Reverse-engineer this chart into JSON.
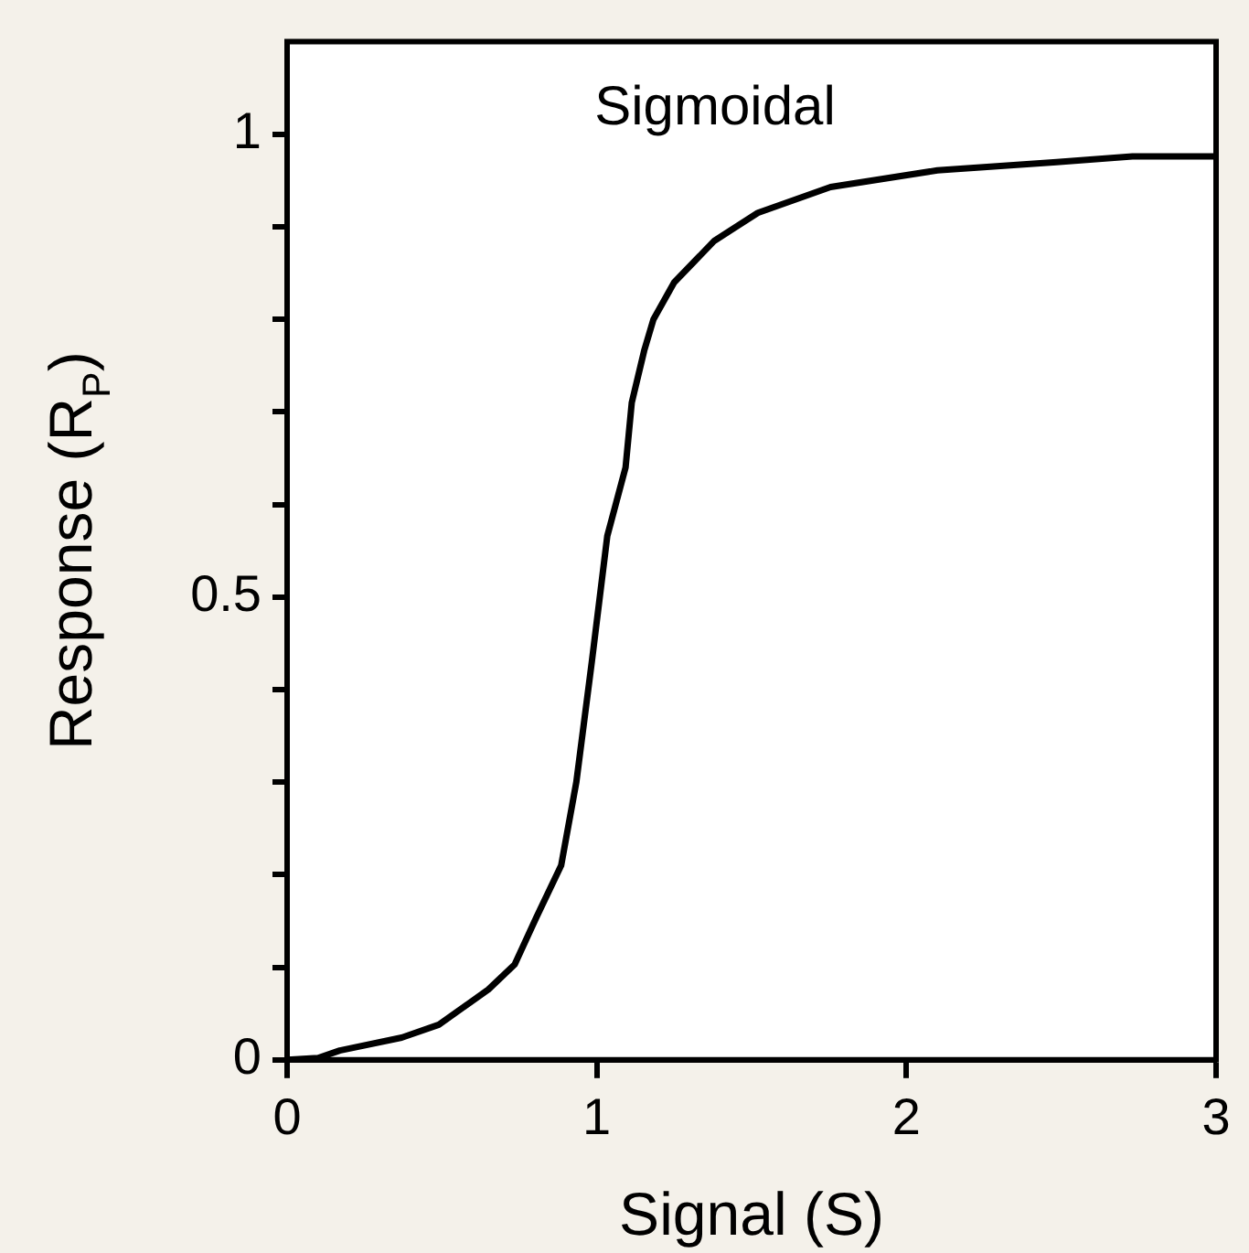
{
  "chart_data": {
    "type": "line",
    "title": "Sigmoidal",
    "xlabel": "Signal (S)",
    "ylabel": "Response (R$_{P}$)",
    "series": [
      {
        "color": "#000000",
        "x": [
          0,
          0.1,
          0.17,
          0.37,
          0.49,
          0.65,
          0.735,
          0.805,
          0.885,
          0.934,
          0.984,
          1.034,
          1.093,
          1.113,
          1.153,
          1.183,
          1.25,
          1.38,
          1.52,
          1.755,
          2.1,
          2.485,
          2.73,
          3
        ],
        "values": [
          0,
          0.002,
          0.01,
          0.024,
          0.038,
          0.076,
          0.103,
          0.154,
          0.21,
          0.3,
          0.43,
          0.566,
          0.64,
          0.71,
          0.766,
          0.8,
          0.84,
          0.885,
          0.915,
          0.943,
          0.961,
          0.97,
          0.976,
          0.976
        ]
      }
    ],
    "xlim": [
      0,
      3
    ],
    "xticks": [
      0,
      1,
      2,
      3
    ],
    "ylim": [
      0,
      1.1
    ],
    "yticks": [
      0,
      {
        "value": 0.1,
        "label": null
      },
      {
        "value": 0.2,
        "label": null
      },
      {
        "value": 0.3,
        "label": null
      },
      {
        "value": 0.4,
        "label": null
      },
      0.5,
      {
        "value": 0.6,
        "label": null
      },
      {
        "value": 0.7,
        "label": null
      },
      {
        "value": 0.8,
        "label": null
      },
      {
        "value": 0.9,
        "label": null
      },
      1
    ],
    "grid": false,
    "legend": false,
    "marker": "none",
    "line_style": "solid"
  }
}
